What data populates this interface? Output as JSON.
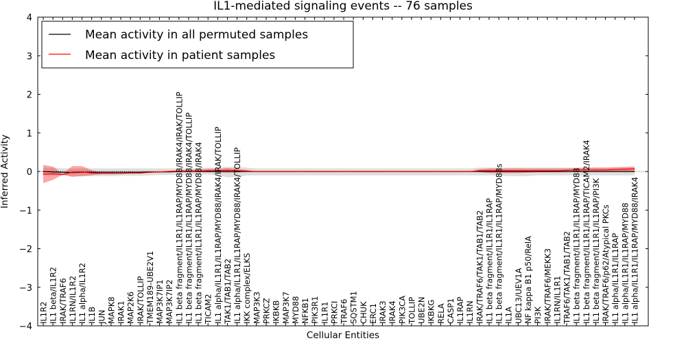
{
  "chart_data": {
    "type": "line",
    "title": "IL1-mediated signaling events -- 76 samples",
    "xlabel": "Cellular Entities",
    "ylabel": "Inferred Activity",
    "ylim": [
      -4,
      4
    ],
    "yticks": [
      "−4",
      "−3",
      "−2",
      "−1",
      "0",
      "1",
      "2",
      "3",
      "4"
    ],
    "legend_position": "top-left",
    "categories": [
      "IL1R2",
      "IL1 beta/IL1R2",
      "IRAK/TRAF6",
      "IL1RN/IL1R2",
      "IL1 alpha/IL1R2",
      "IL1B",
      "JUN",
      "MAPK8",
      "IRAK1",
      "MAP2K6",
      "IRAK/TOLLIP",
      "TMEM189-UBE2V1",
      "MAP3K7IP1",
      "MAP3K7IP2",
      "IL1 beta fragment/IL1R1/IL1RAP/MYD88/IRAK4/IRAK/TOLLIP",
      "IL1 beta fragment/IL1R1/IL1RAP/MYD88/IRAK4/TOLLIP",
      "IL1 beta fragment/IL1R1/IL1RAP/MYD88/IRAK4",
      "TICAM2",
      "IL1 alpha/IL1R1/IL1RAP/MYD88/IRAK4/IRAK/TOLLIP",
      "TAK1/TAB1/TAB2",
      "IL1 alpha/IL1R1/IL1RAP/MYD88/IRAK4/TOLLIP",
      "IKK complex/ELKS",
      "MAP3K3",
      "PRKCZ",
      "IKBKB",
      "MAP3K7",
      "MYD88",
      "NFKB1",
      "PIK3R1",
      "IL1R1",
      "PRKCI",
      "TRAF6",
      "SQSTM1",
      "CHUK",
      "ERC1",
      "IRAK3",
      "IRAK4",
      "PIK3CA",
      "TOLLIP",
      "UBE2N",
      "IKBKG",
      "RELA",
      "CASP1",
      "IL1RAP",
      "IL1RN",
      "IRAK/TRAF6/TAK1/TAB1/TAB2",
      "IL1 beta fragment/IL1R1/IL1RAP",
      "IL1 beta fragment/IL1R1/IL1RAP/MYD88s",
      "IL1A",
      "UBC13/UEV1A",
      "NF kappa B1 p50/RelA",
      "PI3K",
      "IRAK/TRAF6/MEKK3",
      "IL1RN/IL1R1",
      "TRAF6/TAK1/TAB1/TAB2",
      "IL1 beta fragment/IL1R1/IL1RAP/MYD88",
      "IL1 beta fragment/IL1R1/IL1RAP/TICAM2/IRAK4",
      "IL1 beta fragment/IL1R1/IL1RAP/PI3K",
      "IRAK/TRAF6/p62/Atypical PKCs",
      "IL1 alpha/IL1R1/IL1RAP",
      "IL1 alpha/IL1R1/IL1RAP/MYD88",
      "IL1 alpha/IL1R1/IL1RAP/MYD88/IRAK4"
    ],
    "series": [
      {
        "name": "Mean activity in all permuted samples",
        "color": "#000000",
        "values": [
          0.0,
          -0.01,
          -0.02,
          -0.03,
          -0.02,
          -0.02,
          -0.02,
          -0.02,
          -0.02,
          -0.02,
          -0.02,
          -0.01,
          -0.01,
          -0.01,
          0.0,
          0.0,
          0.0,
          0.0,
          0.0,
          0.0,
          0.0,
          0.0,
          0.0,
          0.0,
          0.0,
          0.0,
          0.0,
          0.0,
          0.0,
          0.0,
          0.0,
          0.0,
          0.0,
          0.0,
          0.0,
          0.0,
          0.0,
          0.0,
          0.0,
          0.0,
          0.0,
          0.0,
          0.0,
          0.0,
          0.0,
          0.0,
          0.0,
          0.0,
          0.0,
          0.0,
          0.0,
          0.0,
          0.0,
          0.0,
          0.0,
          0.0,
          0.0,
          0.0,
          0.0,
          0.0,
          0.0,
          0.0
        ],
        "band_low": [
          -0.1,
          -0.1,
          -0.1,
          -0.12,
          -0.12,
          -0.12,
          -0.12,
          -0.12,
          -0.11,
          -0.11,
          -0.11,
          -0.1,
          -0.09,
          -0.09,
          -0.08,
          -0.08,
          -0.08,
          -0.08,
          -0.1,
          -0.15,
          -0.14,
          -0.1,
          -0.1,
          -0.1,
          -0.1,
          -0.1,
          -0.1,
          -0.1,
          -0.1,
          -0.1,
          -0.1,
          -0.1,
          -0.1,
          -0.1,
          -0.1,
          -0.1,
          -0.1,
          -0.1,
          -0.1,
          -0.1,
          -0.1,
          -0.1,
          -0.1,
          -0.1,
          -0.1,
          -0.1,
          -0.1,
          -0.1,
          -0.12,
          -0.12,
          -0.12,
          -0.1,
          -0.1,
          -0.1,
          -0.1,
          -0.1,
          -0.1,
          -0.1,
          -0.1,
          -0.1,
          -0.1,
          -0.1
        ],
        "band_high": [
          0.1,
          0.1,
          0.08,
          0.08,
          0.08,
          0.08,
          0.08,
          0.08,
          0.08,
          0.08,
          0.08,
          0.08,
          0.08,
          0.08,
          0.08,
          0.08,
          0.08,
          0.1,
          0.1,
          0.12,
          0.12,
          0.1,
          0.08,
          0.08,
          0.08,
          0.08,
          0.08,
          0.08,
          0.08,
          0.08,
          0.08,
          0.08,
          0.08,
          0.08,
          0.08,
          0.08,
          0.08,
          0.08,
          0.08,
          0.08,
          0.08,
          0.08,
          0.08,
          0.08,
          0.08,
          0.1,
          0.1,
          0.1,
          0.1,
          0.1,
          0.1,
          0.1,
          0.1,
          0.1,
          0.1,
          0.1,
          0.1,
          0.1,
          0.1,
          0.1,
          0.1,
          0.1
        ]
      },
      {
        "name": "Mean activity in patient samples",
        "color": "#ff0000",
        "values": [
          -0.07,
          -0.06,
          -0.08,
          -0.02,
          -0.01,
          -0.04,
          -0.05,
          -0.05,
          -0.05,
          -0.04,
          -0.04,
          -0.02,
          -0.01,
          0.0,
          0.01,
          0.01,
          0.01,
          0.02,
          0.02,
          0.03,
          0.02,
          0.01,
          0.0,
          0.0,
          0.0,
          0.0,
          0.0,
          0.0,
          0.0,
          0.0,
          0.0,
          0.0,
          0.0,
          0.0,
          0.0,
          0.0,
          0.0,
          0.0,
          0.0,
          0.0,
          0.0,
          0.0,
          0.0,
          0.0,
          0.0,
          0.02,
          0.02,
          0.02,
          0.02,
          0.02,
          0.02,
          0.02,
          0.02,
          0.02,
          0.03,
          0.04,
          0.04,
          0.04,
          0.04,
          0.05,
          0.06,
          0.07
        ],
        "band_low": [
          -0.3,
          -0.22,
          -0.08,
          -0.14,
          -0.12,
          -0.1,
          -0.07,
          -0.07,
          -0.06,
          -0.05,
          -0.05,
          -0.03,
          -0.02,
          -0.02,
          -0.01,
          -0.01,
          -0.01,
          -0.02,
          -0.02,
          -0.03,
          -0.02,
          -0.01,
          0.0,
          0.0,
          0.0,
          0.0,
          0.0,
          0.0,
          0.0,
          0.0,
          0.0,
          0.0,
          0.0,
          0.0,
          0.0,
          0.0,
          0.0,
          0.0,
          0.0,
          0.0,
          0.0,
          0.0,
          0.0,
          0.0,
          0.0,
          -0.01,
          -0.04,
          -0.04,
          -0.04,
          -0.04,
          -0.03,
          -0.02,
          -0.02,
          -0.02,
          -0.01,
          -0.01,
          -0.01,
          -0.01,
          -0.01,
          -0.01,
          -0.01,
          -0.01
        ],
        "band_high": [
          0.17,
          0.13,
          -0.06,
          0.14,
          0.14,
          0.03,
          -0.03,
          -0.03,
          -0.04,
          -0.03,
          -0.03,
          -0.01,
          0.0,
          0.02,
          0.03,
          0.04,
          0.05,
          0.07,
          0.07,
          0.09,
          0.07,
          0.04,
          0.0,
          0.0,
          0.0,
          0.0,
          0.0,
          0.0,
          0.0,
          0.0,
          0.0,
          0.0,
          0.0,
          0.0,
          0.0,
          0.0,
          0.0,
          0.0,
          0.0,
          0.0,
          0.0,
          0.0,
          0.0,
          0.0,
          0.0,
          0.06,
          0.08,
          0.08,
          0.08,
          0.08,
          0.08,
          0.08,
          0.08,
          0.08,
          0.08,
          0.09,
          0.09,
          0.1,
          0.1,
          0.11,
          0.12,
          0.13
        ]
      }
    ]
  }
}
